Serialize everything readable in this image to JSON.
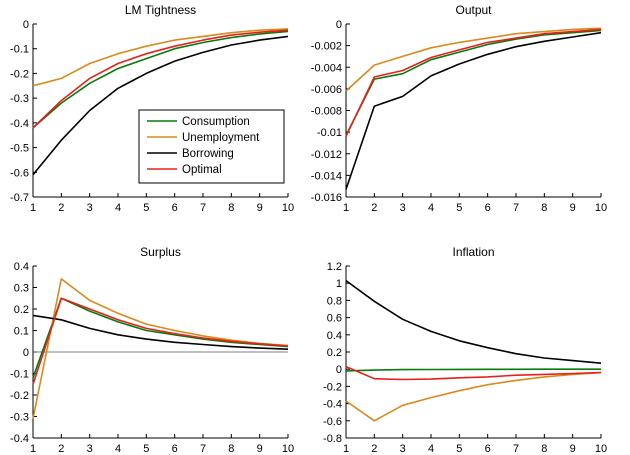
{
  "colors": {
    "Consumption": "#0a7a0a",
    "Unemployment": "#d88a1c",
    "Borrowing": "#000000",
    "Optimal": "#e8201c"
  },
  "chart_data": [
    {
      "type": "line",
      "title": "LM Tightness",
      "x": [
        1,
        2,
        3,
        4,
        5,
        6,
        7,
        8,
        9,
        10
      ],
      "xlim": [
        1,
        10
      ],
      "ylim": [
        -0.7,
        0
      ],
      "yticks": [
        0,
        -0.1,
        -0.2,
        -0.3,
        -0.4,
        -0.5,
        -0.6,
        -0.7
      ],
      "ytick_labels": [
        "0",
        "-0.1",
        "-0.2",
        "-0.3",
        "-0.4",
        "-0.5",
        "-0.6",
        "-0.7"
      ],
      "zero_line": false,
      "legend": {
        "placement": "center-right",
        "entries": [
          "Consumption",
          "Unemployment",
          "Borrowing",
          "Optimal"
        ]
      },
      "series": [
        {
          "name": "Consumption",
          "values": [
            -0.42,
            -0.32,
            -0.24,
            -0.18,
            -0.14,
            -0.1,
            -0.075,
            -0.055,
            -0.04,
            -0.03
          ]
        },
        {
          "name": "Unemployment",
          "values": [
            -0.25,
            -0.22,
            -0.16,
            -0.12,
            -0.09,
            -0.065,
            -0.05,
            -0.035,
            -0.025,
            -0.02
          ]
        },
        {
          "name": "Borrowing",
          "values": [
            -0.61,
            -0.47,
            -0.35,
            -0.26,
            -0.2,
            -0.15,
            -0.115,
            -0.085,
            -0.065,
            -0.05
          ]
        },
        {
          "name": "Optimal",
          "values": [
            -0.42,
            -0.31,
            -0.22,
            -0.16,
            -0.12,
            -0.09,
            -0.065,
            -0.045,
            -0.033,
            -0.025
          ]
        }
      ]
    },
    {
      "type": "line",
      "title": "Output",
      "x": [
        1,
        2,
        3,
        4,
        5,
        6,
        7,
        8,
        9,
        10
      ],
      "xlim": [
        1,
        10
      ],
      "ylim": [
        -0.016,
        0
      ],
      "yticks": [
        0,
        -0.002,
        -0.004,
        -0.006,
        -0.008,
        -0.01,
        -0.012,
        -0.014,
        -0.016
      ],
      "ytick_labels": [
        "0",
        "-0.002",
        "-0.004",
        "-0.006",
        "-0.008",
        "-0.01",
        "-0.012",
        "-0.014",
        "-0.016"
      ],
      "zero_line": false,
      "series": [
        {
          "name": "Consumption",
          "values": [
            -0.0103,
            -0.0051,
            -0.0046,
            -0.0033,
            -0.0026,
            -0.0019,
            -0.0014,
            -0.001,
            -0.0008,
            -0.0006
          ]
        },
        {
          "name": "Unemployment",
          "values": [
            -0.0062,
            -0.0038,
            -0.003,
            -0.0022,
            -0.0017,
            -0.0013,
            -0.0009,
            -0.0007,
            -0.0005,
            -0.0004
          ]
        },
        {
          "name": "Borrowing",
          "values": [
            -0.0153,
            -0.0076,
            -0.0067,
            -0.0048,
            -0.0037,
            -0.0028,
            -0.0021,
            -0.0016,
            -0.0012,
            -0.0008
          ]
        },
        {
          "name": "Optimal",
          "values": [
            -0.0104,
            -0.0049,
            -0.0043,
            -0.0031,
            -0.0024,
            -0.0017,
            -0.0013,
            -0.0009,
            -0.0007,
            -0.0005
          ]
        }
      ]
    },
    {
      "type": "line",
      "title": "Surplus",
      "x": [
        1,
        2,
        3,
        4,
        5,
        6,
        7,
        8,
        9,
        10
      ],
      "xlim": [
        1,
        10
      ],
      "ylim": [
        -0.4,
        0.4
      ],
      "yticks": [
        0.4,
        0.3,
        0.2,
        0.1,
        0,
        -0.1,
        -0.2,
        -0.3,
        -0.4
      ],
      "ytick_labels": [
        "0.4",
        "0.3",
        "0.2",
        "0.1",
        "0",
        "-0.1",
        "-0.2",
        "-0.3",
        "-0.4"
      ],
      "zero_line": true,
      "series": [
        {
          "name": "Consumption",
          "values": [
            -0.12,
            0.25,
            0.19,
            0.14,
            0.1,
            0.08,
            0.06,
            0.045,
            0.035,
            0.025
          ]
        },
        {
          "name": "Unemployment",
          "values": [
            -0.31,
            0.34,
            0.24,
            0.18,
            0.13,
            0.1,
            0.075,
            0.055,
            0.04,
            0.03
          ]
        },
        {
          "name": "Borrowing",
          "values": [
            0.17,
            0.15,
            0.11,
            0.08,
            0.06,
            0.045,
            0.035,
            0.025,
            0.018,
            0.013
          ]
        },
        {
          "name": "Optimal",
          "values": [
            -0.15,
            0.25,
            0.2,
            0.15,
            0.11,
            0.085,
            0.065,
            0.05,
            0.038,
            0.028
          ]
        }
      ]
    },
    {
      "type": "line",
      "title": "Inflation",
      "x": [
        1,
        2,
        3,
        4,
        5,
        6,
        7,
        8,
        9,
        10
      ],
      "xlim": [
        1,
        10
      ],
      "ylim": [
        -0.8,
        1.2
      ],
      "yticks": [
        1.2,
        1,
        0.8,
        0.6,
        0.4,
        0.2,
        0,
        -0.2,
        -0.4,
        -0.6,
        -0.8
      ],
      "ytick_labels": [
        "1.2",
        "1",
        "0.8",
        "0.6",
        "0.4",
        "0.2",
        "0",
        "-0.2",
        "-0.4",
        "-0.6",
        "-0.8"
      ],
      "zero_line": false,
      "series": [
        {
          "name": "Consumption",
          "values": [
            -0.02,
            -0.01,
            -0.005,
            -0.003,
            -0.002,
            -0.001,
            -0.001,
            0,
            0,
            0
          ]
        },
        {
          "name": "Unemployment",
          "values": [
            -0.37,
            -0.6,
            -0.42,
            -0.33,
            -0.25,
            -0.18,
            -0.13,
            -0.09,
            -0.06,
            -0.04
          ]
        },
        {
          "name": "Borrowing",
          "values": [
            1.03,
            0.79,
            0.58,
            0.44,
            0.33,
            0.25,
            0.18,
            0.13,
            0.1,
            0.07
          ]
        },
        {
          "name": "Optimal",
          "values": [
            0.03,
            -0.11,
            -0.12,
            -0.115,
            -0.1,
            -0.09,
            -0.07,
            -0.06,
            -0.05,
            -0.04
          ]
        }
      ]
    }
  ]
}
